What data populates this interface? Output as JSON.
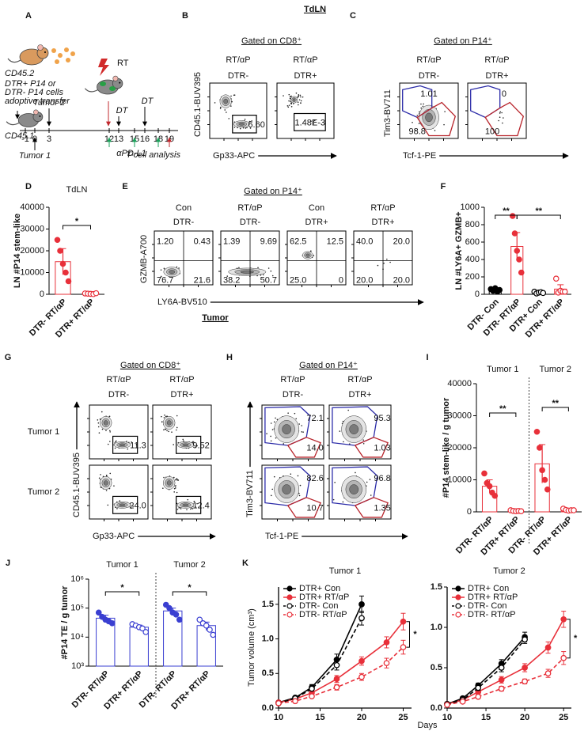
{
  "panels": [
    "A",
    "B",
    "C",
    "D",
    "E",
    "F",
    "G",
    "H",
    "I",
    "J",
    "K"
  ],
  "headers": [
    "TdLN",
    "Tumor"
  ],
  "schematic": {
    "cd452": "CD45.2",
    "transfer": [
      "DTR+ P14 or",
      "DTR- P14 cells",
      "adoptive transfer"
    ],
    "rt": "RT",
    "tumor2": "Tumor 2",
    "dt": [
      "DT",
      "DT"
    ],
    "cd451": "CD45.1",
    "days": [
      "-1",
      "0",
      "3",
      "12",
      "13",
      "15",
      "16",
      "18",
      "19"
    ],
    "tumor1": "Tumor 1",
    "apdl1": "αPD-L1",
    "analysis": "T-cell analysis"
  },
  "flow": [
    {
      "gate": "Gated on CD8⁺",
      "columns": [
        [
          "RT/αP",
          "DTR-"
        ],
        [
          "RT/αP",
          "DTR+"
        ]
      ],
      "ylabel": "CD45.1-BUV395",
      "xlabel": "Gp33-APC",
      "gates": [
        [
          [
            "6.60"
          ],
          [
            "1.48E-3"
          ]
        ]
      ]
    },
    {
      "gate": "Gated on P14⁺",
      "columns": [
        [
          "RT/αP",
          "DTR-"
        ],
        [
          "RT/αP",
          "DTR+"
        ]
      ],
      "ylabel": "Tim3-BV711",
      "xlabel": "Tcf-1-PE",
      "gates": [
        [
          [
            "1.01",
            "98.8"
          ],
          [
            "0",
            "100"
          ]
        ]
      ]
    },
    {
      "gate": "Gated on P14⁺",
      "columns": [
        [
          "Con",
          "DTR-"
        ],
        [
          "RT/αP",
          "DTR-"
        ],
        [
          "Con",
          "DTR+"
        ],
        [
          "RT/αP",
          "DTR+"
        ]
      ],
      "ylabel": "GZMB-A700",
      "xlabel": "LY6A-BV510",
      "gates": [
        [
          [
            "1.20",
            "0.43",
            "76.7",
            "21.6"
          ],
          [
            "1.39",
            "9.69",
            "38.2",
            "50.7"
          ],
          [
            "62.5",
            "12.5",
            "25.0",
            "0"
          ],
          [
            "40.0",
            "20.0",
            "20.0",
            "20.0"
          ]
        ]
      ]
    },
    {
      "gate": "Gated on CD8⁺",
      "columns": [
        [
          "RT/αP",
          "DTR-"
        ],
        [
          "RT/αP",
          "DTR+"
        ]
      ],
      "rows": [
        "Tumor 1",
        "Tumor 2"
      ],
      "ylabel": "CD45.1-BUV395",
      "xlabel": "Gp33-APC",
      "gates": [
        [
          [
            "11.3"
          ],
          [
            "9.52"
          ]
        ],
        [
          [
            "24.0"
          ],
          [
            "12.4"
          ]
        ]
      ]
    },
    {
      "gate": "Gated on P14⁺",
      "columns": [
        [
          "RT/αP",
          "DTR-"
        ],
        [
          "RT/αP",
          "DTR+"
        ]
      ],
      "ylabel": "Tim3-BV711",
      "xlabel": "Tcf-1-PE",
      "gates": [
        [
          [
            "72.1",
            "14.0"
          ],
          [
            "95.3",
            "1.03"
          ]
        ],
        [
          [
            "82.6",
            "10.7"
          ],
          [
            "96.8",
            "1.35"
          ]
        ]
      ]
    }
  ],
  "chart_data": [
    {
      "type": "dotbar",
      "title": "TdLN",
      "ylabel": "LN #P14 stem-like",
      "categories": [
        "DTR- RT/αP",
        "DTR+ RT/αP"
      ],
      "values": [
        15000,
        300
      ],
      "errors": [
        6000,
        150
      ],
      "points": [
        [
          25000,
          20000,
          14000,
          10000,
          6000
        ],
        [
          400,
          300,
          200,
          100,
          500
        ]
      ],
      "colors": [
        "#e8303a",
        "#e8303a"
      ],
      "filled": [
        true,
        false
      ],
      "ylim": [
        0,
        40000
      ],
      "yticks": [
        0,
        10000,
        20000,
        30000,
        40000
      ],
      "significance": [
        "*"
      ]
    },
    {
      "type": "dotbar",
      "ylabel": "LN #LY6A+ GZMB+",
      "categories": [
        "DTR- Con",
        "DTR- RT/αP",
        "DTR+ Con",
        "DTR+ RT/αP"
      ],
      "values": [
        50,
        550,
        20,
        60
      ],
      "errors": [
        15,
        160,
        10,
        50
      ],
      "points": [
        [
          60,
          40,
          70,
          30,
          50
        ],
        [
          900,
          700,
          500,
          400,
          250
        ],
        [
          30,
          10,
          20,
          25,
          15
        ],
        [
          180,
          20,
          40,
          30,
          30
        ]
      ],
      "colors": [
        "#000000",
        "#e8303a",
        "#000000",
        "#e8303a"
      ],
      "filled": [
        true,
        true,
        false,
        false
      ],
      "ylim": [
        0,
        1000
      ],
      "yticks": [
        0,
        200,
        400,
        600,
        800,
        1000
      ],
      "significance": [
        "**",
        "**"
      ]
    },
    {
      "type": "dotbar",
      "ylabel": "#P14 stem-like / g tumor",
      "groups": [
        "Tumor 1",
        "Tumor 2"
      ],
      "categories": [
        "DTR- RT/αP",
        "DTR+ RT/αP",
        "DTR- RT/αP",
        "DTR+ RT/αP"
      ],
      "values": [
        8000,
        300,
        15000,
        600
      ],
      "errors": [
        2000,
        150,
        6000,
        300
      ],
      "points": [
        [
          12000,
          9000,
          8000,
          6000,
          5000
        ],
        [
          500,
          300,
          200,
          300,
          200
        ],
        [
          25000,
          20000,
          13000,
          10000,
          7000
        ],
        [
          1000,
          600,
          400,
          500,
          500
        ]
      ],
      "colors": [
        "#e8303a",
        "#e8303a",
        "#e8303a",
        "#e8303a"
      ],
      "filled": [
        true,
        false,
        true,
        false
      ],
      "ylim": [
        0,
        40000
      ],
      "yticks": [
        0,
        10000,
        20000,
        30000,
        40000
      ],
      "significance": [
        "**",
        "**"
      ]
    },
    {
      "type": "dotbar",
      "ylabel": "#P14 TE / g tumor",
      "groups": [
        "Tumor 1",
        "Tumor 2"
      ],
      "log": true,
      "categories": [
        "DTR- RT/αP",
        "DTR+ RT/αP",
        "DTR- RT/αP",
        "DTR+ RT/αP"
      ],
      "values": [
        45000,
        22000,
        80000,
        25000
      ],
      "errors": [
        12000,
        4000,
        20000,
        8000
      ],
      "points": [
        [
          70000,
          50000,
          40000,
          35000,
          30000
        ],
        [
          28000,
          25000,
          22000,
          20000,
          15000
        ],
        [
          130000,
          100000,
          70000,
          60000,
          40000
        ],
        [
          40000,
          30000,
          25000,
          18000,
          12000
        ]
      ],
      "colors": [
        "#3a3fd1",
        "#3a3fd1",
        "#3a3fd1",
        "#3a3fd1"
      ],
      "filled": [
        true,
        false,
        true,
        false
      ],
      "ylim": [
        1000,
        1000000
      ],
      "yticks": [
        {
          "value": 1000,
          "label": "10³"
        },
        {
          "value": 10000,
          "label": "10⁴"
        },
        {
          "value": 100000,
          "label": "10⁵"
        },
        {
          "value": 1000000,
          "label": "10⁶"
        }
      ],
      "significance": [
        "*",
        "*"
      ]
    },
    {
      "type": "line",
      "title": "Tumor 1",
      "ylabel": "Tumor volume (cm³)",
      "xlim": [
        10,
        26
      ],
      "xticks": [
        10,
        15,
        20,
        25
      ],
      "ylim": [
        0,
        1.75
      ],
      "yticks": [
        {
          "value": 0,
          "label": "0.0"
        },
        0.5,
        {
          "value": 1,
          "label": "1.0"
        },
        1.5
      ],
      "series": [
        {
          "name": "DTR+ Con",
          "color": "#000000",
          "dashed": false,
          "filled": true,
          "x": [
            10,
            12,
            14,
            17,
            20
          ],
          "values": [
            0.08,
            0.15,
            0.3,
            0.7,
            1.5
          ],
          "errors": [
            0.01,
            0.02,
            0.04,
            0.08,
            0.12
          ]
        },
        {
          "name": "DTR+ RT/αP",
          "color": "#e8303a",
          "dashed": false,
          "filled": true,
          "x": [
            10,
            12,
            14,
            17,
            20,
            23,
            25
          ],
          "values": [
            0.08,
            0.13,
            0.22,
            0.42,
            0.68,
            0.95,
            1.25
          ],
          "errors": [
            0.01,
            0.02,
            0.03,
            0.05,
            0.06,
            0.08,
            0.12
          ]
        },
        {
          "name": "DTR- Con",
          "color": "#000000",
          "dashed": true,
          "filled": false,
          "x": [
            10,
            12,
            14,
            17,
            20
          ],
          "values": [
            0.07,
            0.14,
            0.28,
            0.62,
            1.3
          ],
          "errors": [
            0.01,
            0.02,
            0.03,
            0.07,
            0.1
          ]
        },
        {
          "name": "DTR- RT/αP",
          "color": "#e8303a",
          "dashed": true,
          "filled": false,
          "x": [
            10,
            12,
            14,
            17,
            20,
            23,
            25
          ],
          "values": [
            0.07,
            0.1,
            0.17,
            0.3,
            0.45,
            0.65,
            0.88
          ],
          "errors": [
            0.01,
            0.01,
            0.02,
            0.04,
            0.05,
            0.07,
            0.1
          ]
        }
      ],
      "significance": [
        "*"
      ]
    },
    {
      "type": "line",
      "title": "Tumor 2",
      "xlabel": "Days",
      "xlim": [
        10,
        26
      ],
      "xticks": [
        10,
        15,
        20,
        25
      ],
      "ylim": [
        0,
        1.5
      ],
      "yticks": [
        {
          "value": 0,
          "label": "0.0"
        },
        0.5,
        {
          "value": 1,
          "label": "1.0"
        },
        1.5
      ],
      "series": [
        {
          "name": "DTR+ Con",
          "color": "#000000",
          "dashed": false,
          "filled": true,
          "x": [
            10,
            12,
            14,
            17,
            20
          ],
          "values": [
            0.05,
            0.12,
            0.28,
            0.55,
            0.88
          ],
          "errors": [
            0.01,
            0.02,
            0.03,
            0.05,
            0.06
          ]
        },
        {
          "name": "DTR+ RT/αP",
          "color": "#e8303a",
          "dashed": false,
          "filled": true,
          "x": [
            10,
            12,
            14,
            17,
            20,
            23,
            25
          ],
          "values": [
            0.05,
            0.1,
            0.2,
            0.35,
            0.5,
            0.75,
            1.1
          ],
          "errors": [
            0.01,
            0.01,
            0.03,
            0.04,
            0.05,
            0.07,
            0.1
          ]
        },
        {
          "name": "DTR- Con",
          "color": "#000000",
          "dashed": true,
          "filled": false,
          "x": [
            10,
            12,
            14,
            17,
            20
          ],
          "values": [
            0.05,
            0.1,
            0.25,
            0.5,
            0.85
          ],
          "errors": [
            0.01,
            0.02,
            0.03,
            0.05,
            0.05
          ]
        },
        {
          "name": "DTR- RT/αP",
          "color": "#e8303a",
          "dashed": true,
          "filled": false,
          "x": [
            10,
            12,
            14,
            17,
            20,
            23,
            25
          ],
          "values": [
            0.04,
            0.08,
            0.14,
            0.24,
            0.33,
            0.43,
            0.62
          ],
          "errors": [
            0.01,
            0.01,
            0.02,
            0.03,
            0.03,
            0.05,
            0.08
          ]
        }
      ],
      "significance": [
        "*"
      ]
    }
  ]
}
